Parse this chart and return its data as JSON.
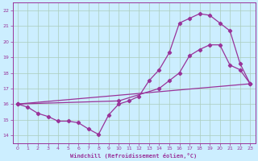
{
  "xlabel": "Windchill (Refroidissement éolien,°C)",
  "bg_color": "#cceeff",
  "line_color": "#993399",
  "grid_color": "#aaccbb",
  "xlim": [
    -0.5,
    23.5
  ],
  "ylim": [
    13.5,
    22.5
  ],
  "xticks": [
    0,
    1,
    2,
    3,
    4,
    5,
    6,
    7,
    8,
    9,
    10,
    11,
    12,
    13,
    14,
    15,
    16,
    17,
    18,
    19,
    20,
    21,
    22,
    23
  ],
  "yticks": [
    14,
    15,
    16,
    17,
    18,
    19,
    20,
    21,
    22
  ],
  "line1_x": [
    0,
    1,
    2,
    3,
    4,
    5,
    6,
    7,
    8,
    9,
    10,
    11,
    12,
    13,
    14,
    15,
    16,
    17,
    18,
    19,
    20,
    21,
    22,
    23
  ],
  "line1_y": [
    16.0,
    15.8,
    15.4,
    15.2,
    14.9,
    14.9,
    14.8,
    14.4,
    14.05,
    15.3,
    16.0,
    16.2,
    16.5,
    17.5,
    18.2,
    19.3,
    21.2,
    21.5,
    21.8,
    21.7,
    21.2,
    20.7,
    18.6,
    17.3
  ],
  "line2_x": [
    0,
    23
  ],
  "line2_y": [
    16.0,
    17.3
  ],
  "line3_x": [
    0,
    10,
    14,
    15,
    16,
    17,
    18,
    19,
    20,
    21,
    22,
    23
  ],
  "line3_y": [
    16.0,
    16.2,
    17.0,
    17.5,
    18.0,
    19.1,
    19.5,
    19.8,
    19.8,
    18.5,
    18.2,
    17.3
  ]
}
